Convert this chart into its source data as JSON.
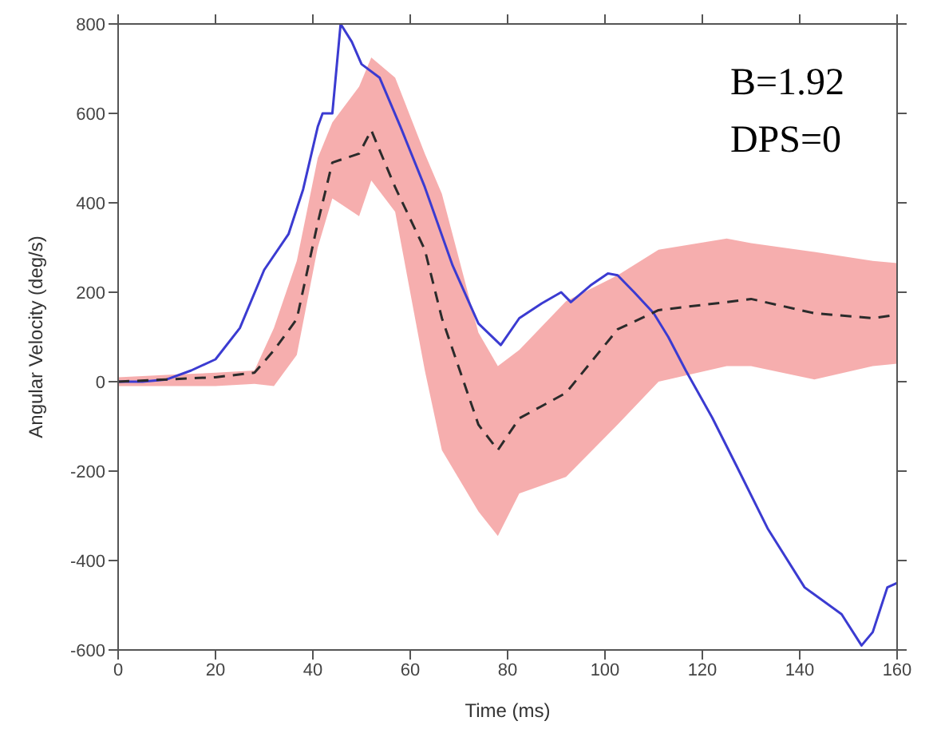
{
  "chart_data": {
    "type": "line",
    "xlabel": "Time (ms)",
    "ylabel": "Angular Velocity (deg/s)",
    "annotations": [
      "B=1.92",
      "DPS=0"
    ],
    "xlim": [
      0,
      160
    ],
    "xticks": [
      0,
      20,
      40,
      60,
      80,
      100,
      120,
      140,
      160
    ],
    "ylim": [
      -600,
      800
    ],
    "yticks": [
      -600,
      -400,
      -200,
      0,
      200,
      400,
      600,
      800
    ],
    "grid": false,
    "legend": false,
    "marker": "none",
    "series": [
      {
        "color": "#3b3bd1",
        "line_style": "solid",
        "x": [
          0,
          5,
          10,
          15,
          20,
          25,
          30,
          35,
          38,
          41,
          42,
          44,
          45.7,
          48,
          50,
          53.7,
          58,
          63,
          68.7,
          74,
          78.6,
          82.4,
          87,
          91,
          93,
          97,
          100.6,
          102.6,
          106,
          110,
          113,
          116.6,
          122,
          127,
          133.5,
          141,
          148.6,
          152.7,
          155,
          158,
          160
        ],
        "values": [
          0,
          0,
          5,
          25,
          50,
          120,
          250,
          330,
          430,
          570,
          600,
          600,
          800,
          760,
          710,
          680,
          570,
          435,
          260,
          130,
          82,
          142,
          175,
          200,
          178,
          215,
          242,
          238,
          200,
          153,
          100,
          25,
          -80,
          -188,
          -330,
          -460,
          -520,
          -590,
          -560,
          -460,
          -450
        ]
      },
      {
        "color": "#2b2b2b",
        "line_style": "dashed",
        "x": [
          0,
          10,
          20,
          28,
          32,
          36.7,
          41,
          44,
          49.5,
          52,
          56.9,
          63,
          66.5,
          74,
          78,
          82.4,
          92,
          102.6,
          111,
          125,
          130,
          143,
          155,
          160
        ],
        "values": [
          0,
          5,
          10,
          20,
          70,
          140,
          355,
          490,
          510,
          562,
          435,
          295,
          142,
          -96,
          -153,
          -82,
          -25,
          117,
          160,
          178,
          185,
          153,
          142,
          150
        ],
        "lower": [
          -10,
          -10,
          -10,
          -5,
          -10,
          60,
          300,
          410,
          370,
          450,
          380,
          25,
          -153,
          -290,
          -345,
          -250,
          -213,
          -96,
          0,
          35,
          35,
          5,
          35,
          40
        ],
        "upper": [
          10,
          15,
          20,
          25,
          120,
          270,
          500,
          580,
          660,
          725,
          680,
          510,
          420,
          110,
          35,
          71,
          180,
          238,
          295,
          320,
          310,
          290,
          270,
          265
        ]
      }
    ]
  }
}
